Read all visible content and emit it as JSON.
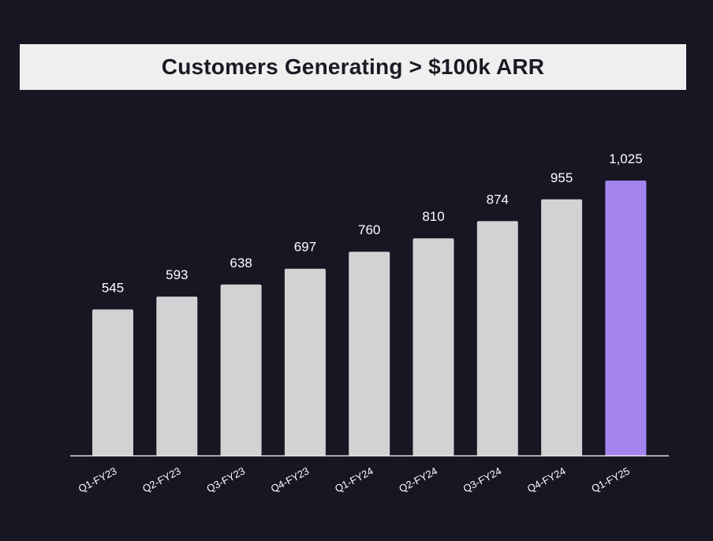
{
  "colors": {
    "background": "#181623",
    "title_band": "#efefef",
    "title_text": "#1b1a24",
    "bar": "#d2d2d4",
    "highlight_bar": "#a584f0",
    "axis": "#ffffff",
    "label": "#ffffff"
  },
  "chart_data": {
    "type": "bar",
    "title": "Customers Generating > $100k ARR",
    "xlabel": "",
    "ylabel": "",
    "categories": [
      "Q1-FY23",
      "Q2-FY23",
      "Q3-FY23",
      "Q4-FY23",
      "Q1-FY24",
      "Q2-FY24",
      "Q3-FY24",
      "Q4-FY24",
      "Q1-FY25"
    ],
    "values": [
      545,
      593,
      638,
      697,
      760,
      810,
      874,
      955,
      1025
    ],
    "value_labels": [
      "545",
      "593",
      "638",
      "697",
      "760",
      "810",
      "874",
      "955",
      "1,025"
    ],
    "highlight_index": 8,
    "ylim": [
      0,
      1100
    ],
    "grid": false,
    "legend": "none"
  }
}
